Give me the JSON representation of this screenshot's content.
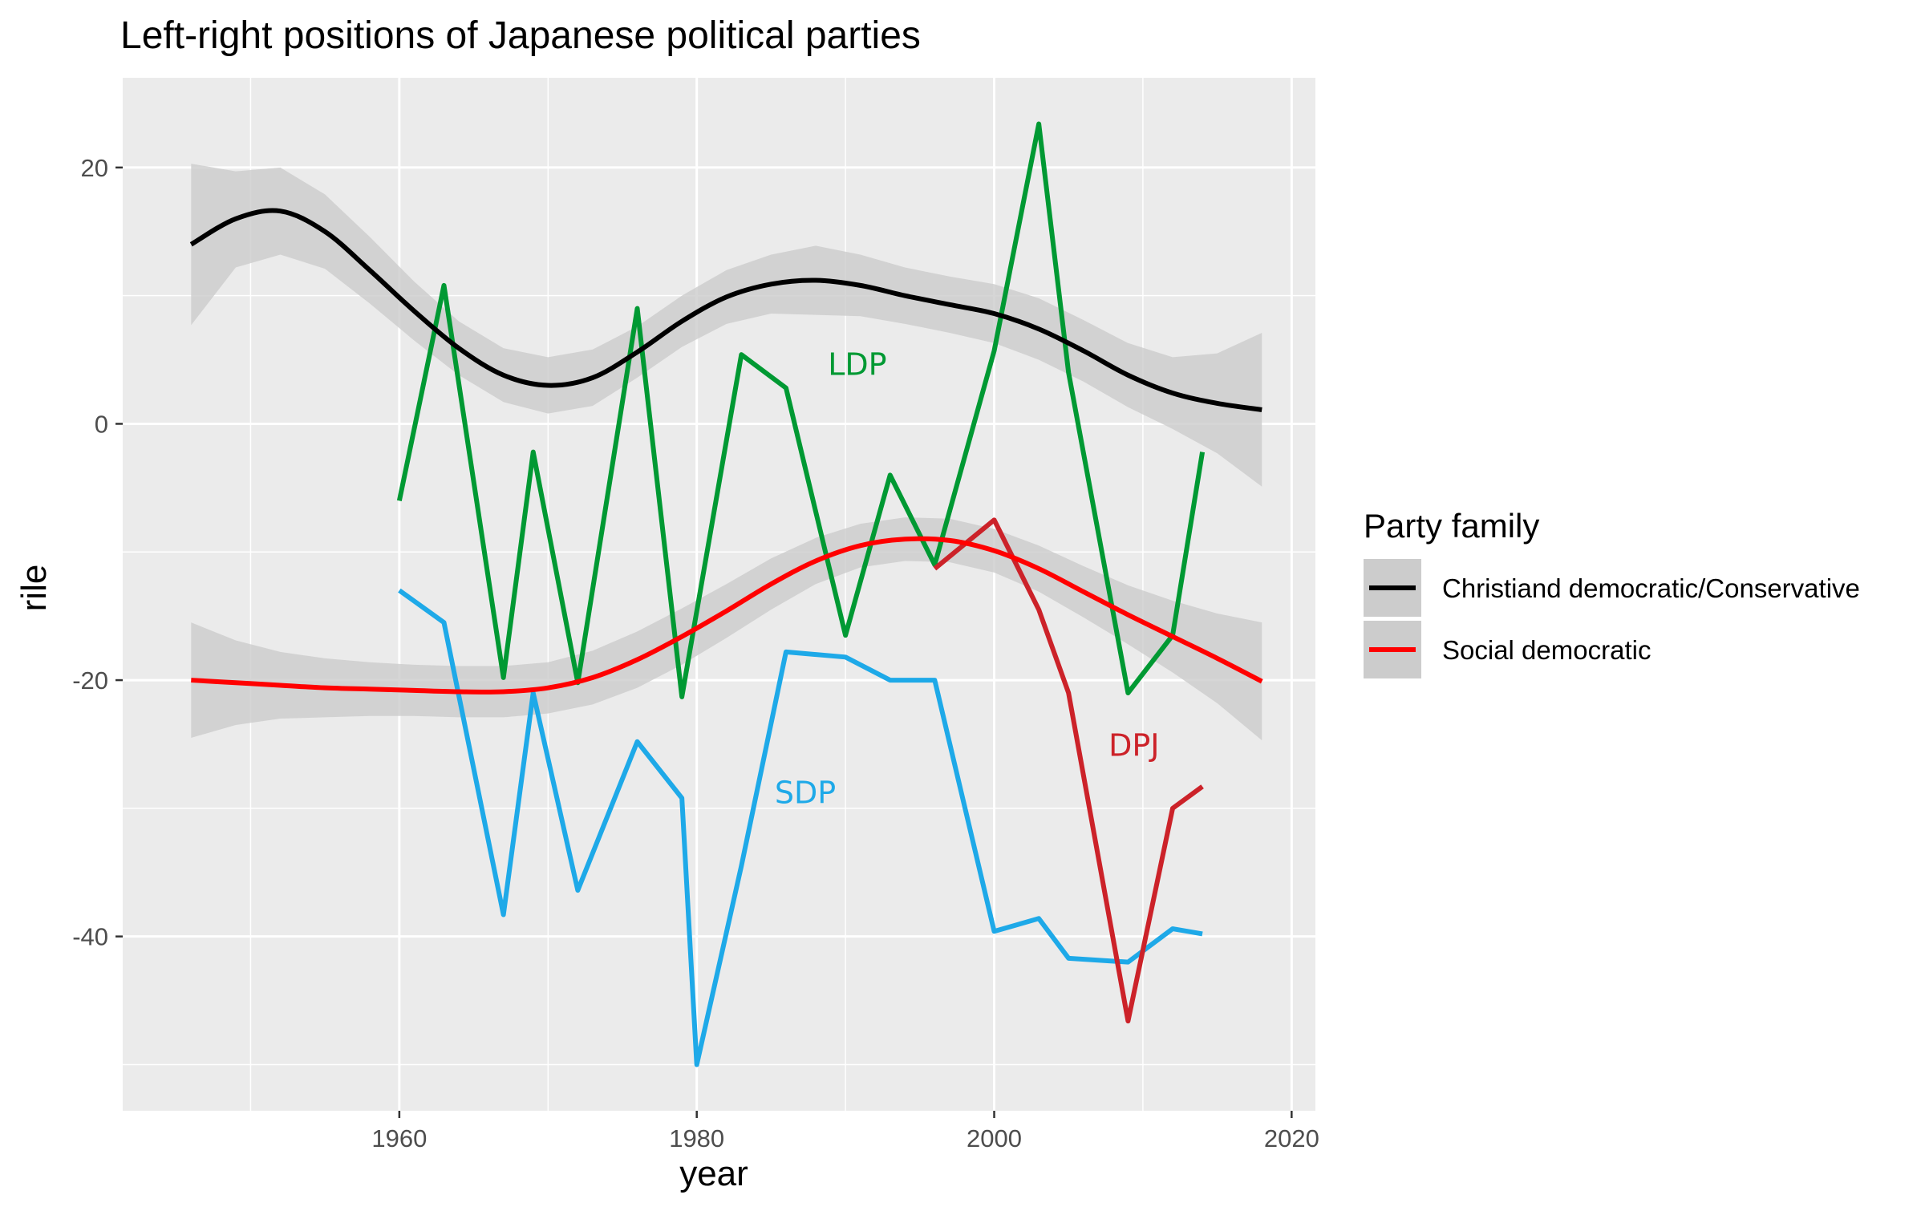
{
  "chart_data": {
    "type": "line",
    "title": "Left-right positions of Japanese political parties",
    "xlabel": "year",
    "ylabel": "rile",
    "xlim": [
      1941.4,
      2021.6
    ],
    "ylim": [
      -53.6,
      27.0
    ],
    "x_ticks": [
      1960,
      1980,
      2000,
      2020
    ],
    "y_ticks": [
      20,
      0,
      -20,
      -40
    ],
    "grid": true,
    "colors": {
      "panel": "#ebebeb",
      "grid": "#ffffff",
      "band": "#cccccc",
      "conservative": "#000000",
      "social_democratic": "#ff0000",
      "LDP": "#009933",
      "SDP": "#1ea9e8",
      "DPJ": "#cc2229"
    },
    "legend": {
      "title": "Party family",
      "placement": "right",
      "items": [
        {
          "label": "Christiand democratic/Conservative",
          "color": "#000000"
        },
        {
          "label": "Social democratic",
          "color": "#ff0000"
        }
      ]
    },
    "smooth": [
      {
        "name": "Christiand democratic/Conservative",
        "color": "#000000",
        "x": [
          1946,
          1949,
          1952,
          1955,
          1958,
          1961,
          1964,
          1967,
          1970,
          1973,
          1976,
          1979,
          1982,
          1985,
          1988,
          1991,
          1994,
          1997,
          2000,
          2003,
          2006,
          2009,
          2012,
          2015,
          2018
        ],
        "y": [
          14.0,
          16.0,
          16.6,
          15.0,
          12.0,
          8.8,
          5.9,
          3.8,
          3.0,
          3.6,
          5.6,
          8.0,
          9.9,
          10.9,
          11.2,
          10.8,
          10.0,
          9.3,
          8.6,
          7.4,
          5.7,
          3.8,
          2.4,
          1.6,
          1.1
        ],
        "lower": [
          7.7,
          12.2,
          13.2,
          12.1,
          9.4,
          6.5,
          3.8,
          1.7,
          0.8,
          1.4,
          3.6,
          6.0,
          7.8,
          8.6,
          8.5,
          8.4,
          7.8,
          7.1,
          6.3,
          5.0,
          3.3,
          1.3,
          -0.4,
          -2.3,
          -4.9
        ],
        "upper": [
          20.3,
          19.7,
          20.0,
          17.9,
          14.6,
          11.1,
          8.0,
          5.9,
          5.2,
          5.8,
          7.6,
          10.0,
          12.0,
          13.2,
          13.9,
          13.2,
          12.2,
          11.5,
          10.9,
          9.8,
          8.1,
          6.3,
          5.2,
          5.5,
          7.1
        ]
      },
      {
        "name": "Social democratic",
        "color": "#ff0000",
        "x": [
          1946,
          1949,
          1952,
          1955,
          1958,
          1961,
          1964,
          1967,
          1970,
          1973,
          1976,
          1979,
          1982,
          1985,
          1988,
          1991,
          1994,
          1997,
          2000,
          2003,
          2006,
          2009,
          2012,
          2015,
          2018
        ],
        "y": [
          -20.0,
          -20.2,
          -20.4,
          -20.6,
          -20.7,
          -20.8,
          -20.9,
          -20.9,
          -20.6,
          -19.8,
          -18.4,
          -16.6,
          -14.6,
          -12.5,
          -10.7,
          -9.5,
          -9.0,
          -9.1,
          -9.9,
          -11.3,
          -13.1,
          -14.9,
          -16.6,
          -18.3,
          -20.1
        ],
        "lower": [
          -24.5,
          -23.5,
          -23.0,
          -22.9,
          -22.8,
          -22.8,
          -22.9,
          -22.9,
          -22.6,
          -21.9,
          -20.6,
          -18.8,
          -16.7,
          -14.5,
          -12.5,
          -11.2,
          -10.7,
          -10.8,
          -11.6,
          -13.1,
          -15.1,
          -17.2,
          -19.4,
          -21.8,
          -24.7
        ],
        "upper": [
          -15.5,
          -16.9,
          -17.8,
          -18.3,
          -18.6,
          -18.8,
          -18.9,
          -18.9,
          -18.6,
          -17.7,
          -16.2,
          -14.4,
          -12.5,
          -10.5,
          -8.9,
          -7.8,
          -7.3,
          -7.4,
          -8.2,
          -9.5,
          -11.1,
          -12.6,
          -13.8,
          -14.8,
          -15.5
        ]
      }
    ],
    "series": [
      {
        "name": "LDP",
        "color": "#009933",
        "x": [
          1960,
          1963,
          1967,
          1969,
          1972,
          1976,
          1979,
          1983,
          1986,
          1990,
          1993,
          1996,
          2000,
          2003,
          2005,
          2009,
          2012,
          2014
        ],
        "y": [
          -6.0,
          10.8,
          -19.8,
          -2.2,
          -20.2,
          9.0,
          -21.3,
          5.4,
          2.8,
          -16.5,
          -4.0,
          -11.0,
          5.7,
          23.4,
          4.0,
          -21.0,
          -16.5,
          -2.2
        ]
      },
      {
        "name": "SDP",
        "color": "#1ea9e8",
        "x": [
          1960,
          1963,
          1967,
          1969,
          1972,
          1976,
          1979,
          1980,
          1983,
          1986,
          1990,
          1993,
          1996,
          2000,
          2003,
          2005,
          2009,
          2012,
          2014
        ],
        "y": [
          -13.0,
          -15.5,
          -38.3,
          -21.0,
          -36.4,
          -24.8,
          -29.2,
          -50.0,
          -34.5,
          -17.8,
          -18.2,
          -20.0,
          -20.0,
          -39.6,
          -38.6,
          -41.7,
          -42.0,
          -39.4,
          -39.8
        ]
      },
      {
        "name": "DPJ",
        "color": "#cc2229",
        "x": [
          1996,
          2000,
          2003,
          2005,
          2009,
          2012,
          2014
        ],
        "y": [
          -11.3,
          -7.5,
          -14.5,
          -21.0,
          -46.6,
          -30.0,
          -28.3
        ]
      }
    ],
    "annotations": [
      {
        "text": "LDP",
        "x": 1990.8,
        "y": 3.8,
        "color": "#009933"
      },
      {
        "text": "SDP",
        "x": 1987.3,
        "y": -29.6,
        "color": "#1ea9e8"
      },
      {
        "text": "DPJ",
        "x": 2009.4,
        "y": -25.9,
        "color": "#cc2229"
      }
    ]
  }
}
